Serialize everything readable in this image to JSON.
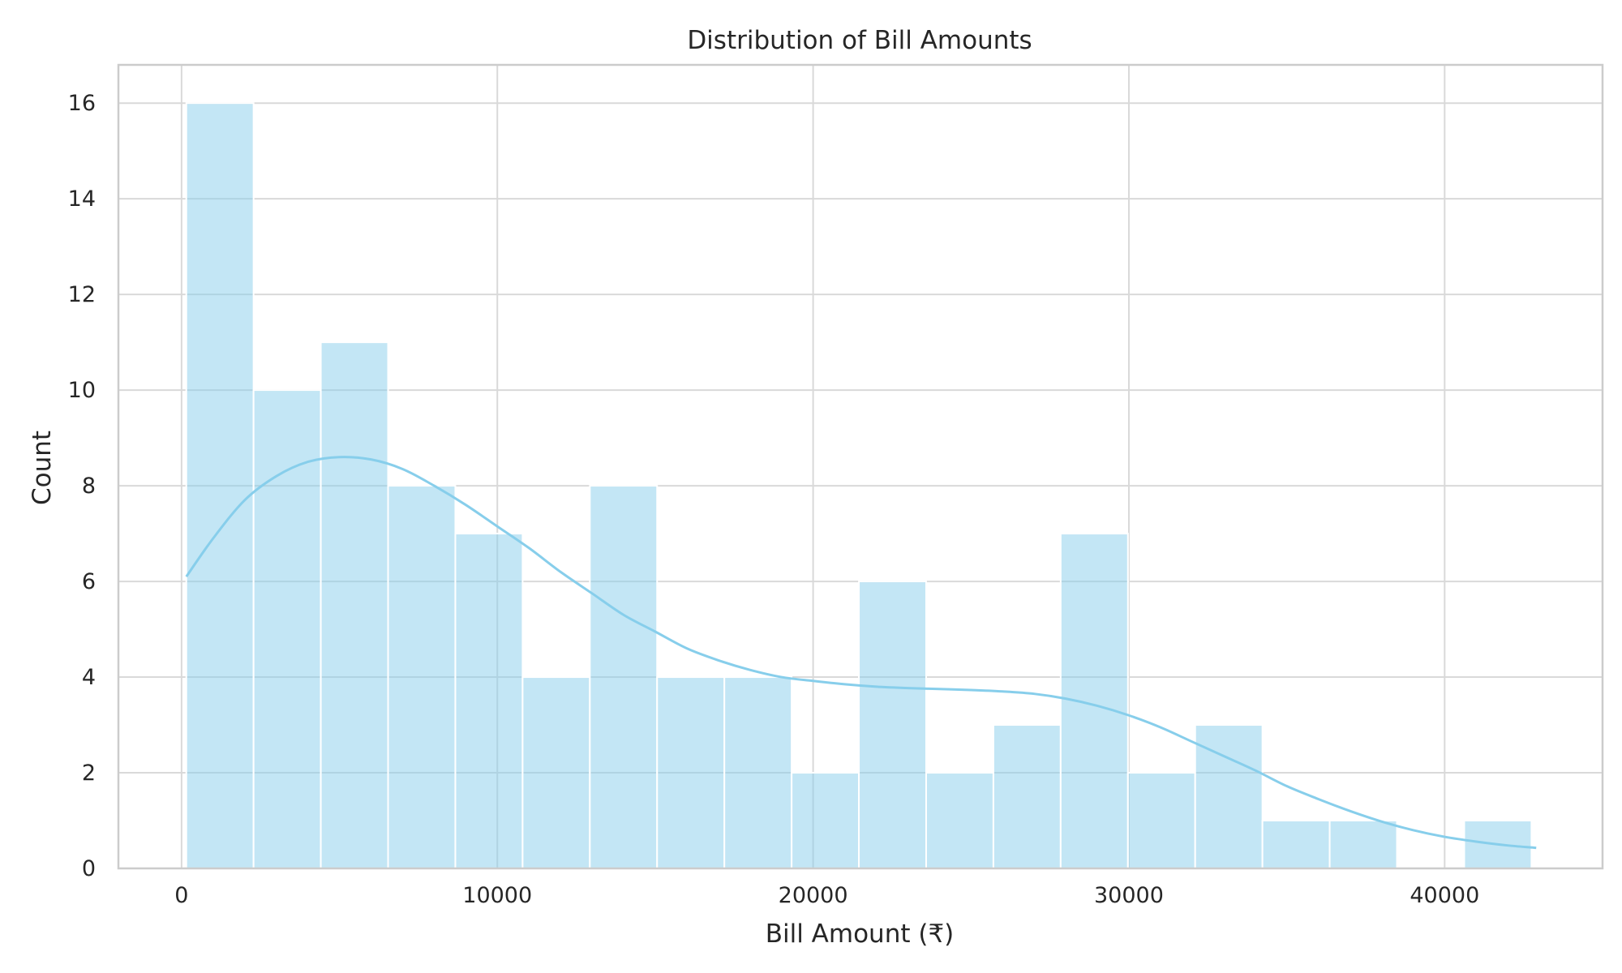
{
  "chart_data": {
    "type": "bar",
    "title": "Distribution of Bill Amounts",
    "xlabel": "Bill Amount (₹)",
    "ylabel": "Count",
    "xlim": [
      -2000,
      45000
    ],
    "ylim": [
      0,
      16.8
    ],
    "xticks": [
      0,
      10000,
      20000,
      30000,
      40000
    ],
    "yticks": [
      0,
      2,
      4,
      6,
      8,
      10,
      12,
      14,
      16
    ],
    "grid": true,
    "legend": "none",
    "bins": [
      {
        "x0": 150,
        "x1": 2280,
        "count": 16
      },
      {
        "x0": 2280,
        "x1": 4410,
        "count": 10
      },
      {
        "x0": 4410,
        "x1": 6540,
        "count": 11
      },
      {
        "x0": 6540,
        "x1": 8670,
        "count": 8
      },
      {
        "x0": 8670,
        "x1": 10800,
        "count": 7
      },
      {
        "x0": 10800,
        "x1": 12930,
        "count": 4
      },
      {
        "x0": 12930,
        "x1": 15060,
        "count": 8
      },
      {
        "x0": 15060,
        "x1": 17190,
        "count": 4
      },
      {
        "x0": 17190,
        "x1": 19320,
        "count": 4
      },
      {
        "x0": 19320,
        "x1": 21450,
        "count": 2
      },
      {
        "x0": 21450,
        "x1": 23580,
        "count": 6
      },
      {
        "x0": 23580,
        "x1": 25710,
        "count": 2
      },
      {
        "x0": 25710,
        "x1": 27840,
        "count": 3
      },
      {
        "x0": 27840,
        "x1": 29970,
        "count": 7
      },
      {
        "x0": 29970,
        "x1": 32100,
        "count": 2
      },
      {
        "x0": 32100,
        "x1": 34230,
        "count": 3
      },
      {
        "x0": 34230,
        "x1": 36360,
        "count": 1
      },
      {
        "x0": 36360,
        "x1": 38490,
        "count": 1
      },
      {
        "x0": 38490,
        "x1": 40620,
        "count": 0
      },
      {
        "x0": 40620,
        "x1": 42750,
        "count": 1
      }
    ],
    "kde": {
      "x": [
        150,
        1000,
        2000,
        3000,
        4000,
        5000,
        6000,
        7000,
        8000,
        9000,
        10000,
        11000,
        12000,
        13000,
        14000,
        15000,
        16000,
        17000,
        18000,
        19000,
        20000,
        21000,
        22000,
        23000,
        24000,
        25000,
        26000,
        27000,
        28000,
        29000,
        30000,
        31000,
        32000,
        33000,
        34000,
        35000,
        36000,
        37000,
        38000,
        39000,
        40000,
        41000,
        42000,
        42900
      ],
      "y": [
        6.1,
        6.9,
        7.7,
        8.2,
        8.5,
        8.6,
        8.55,
        8.35,
        8.0,
        7.6,
        7.15,
        6.7,
        6.2,
        5.75,
        5.3,
        4.95,
        4.6,
        4.35,
        4.15,
        4.0,
        3.92,
        3.85,
        3.8,
        3.77,
        3.75,
        3.73,
        3.7,
        3.65,
        3.55,
        3.4,
        3.2,
        2.95,
        2.65,
        2.35,
        2.05,
        1.72,
        1.45,
        1.2,
        0.98,
        0.8,
        0.66,
        0.56,
        0.48,
        0.43
      ]
    },
    "colors": {
      "bar_fill": "#87ceeb",
      "bar_opacity": 0.5,
      "kde_line": "#87ceeb"
    }
  }
}
